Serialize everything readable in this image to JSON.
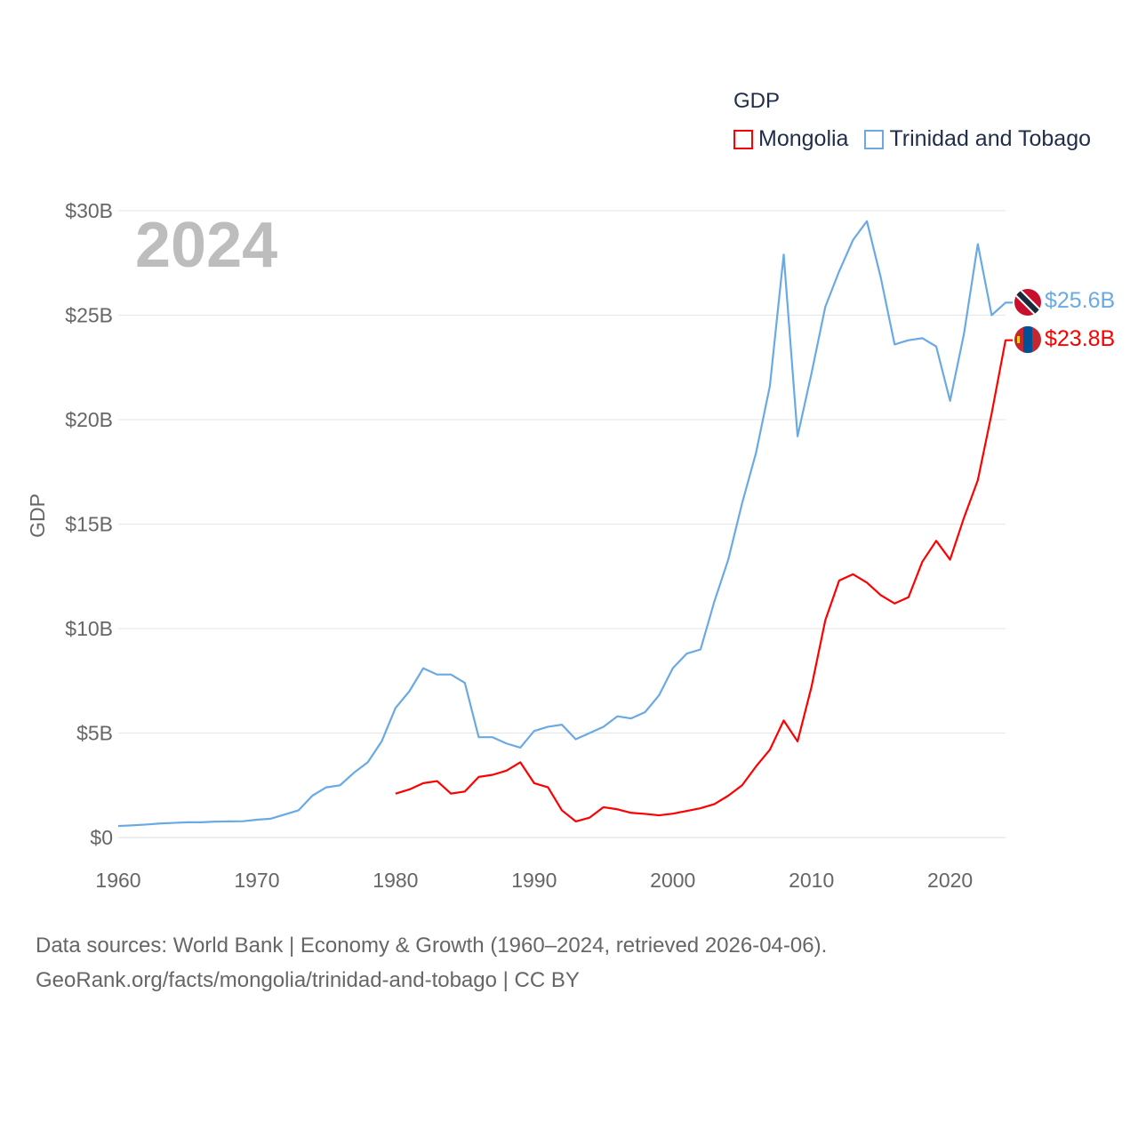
{
  "chart_data": {
    "type": "line",
    "title": "GDP",
    "year_label": "2024",
    "xlabel": "",
    "ylabel": "GDP",
    "xlim": [
      1960,
      2024
    ],
    "ylim": [
      0,
      30
    ],
    "x_ticks": [
      1960,
      1970,
      1980,
      1990,
      2000,
      2010,
      2020
    ],
    "x_tick_labels": [
      "1960",
      "1970",
      "1980",
      "1990",
      "2000",
      "2010",
      "2020"
    ],
    "y_ticks": [
      0,
      5,
      10,
      15,
      20,
      25,
      30
    ],
    "y_tick_labels": [
      "$0",
      "$5B",
      "$10B",
      "$15B",
      "$20B",
      "$25B",
      "$30B"
    ],
    "grid": true,
    "legend_position": "top-right",
    "series": [
      {
        "name": "Mongolia",
        "color": "#ff0000",
        "end_label": "$23.8B",
        "start_year": 1980,
        "values": [
          2.1,
          2.3,
          2.6,
          2.7,
          2.1,
          2.2,
          2.9,
          3.0,
          3.2,
          3.6,
          2.6,
          2.4,
          1.3,
          0.77,
          0.95,
          1.45,
          1.35,
          1.18,
          1.13,
          1.06,
          1.14,
          1.27,
          1.4,
          1.6,
          2.0,
          2.5,
          3.4,
          4.2,
          5.6,
          4.6,
          7.2,
          10.4,
          12.3,
          12.6,
          12.2,
          11.6,
          11.2,
          11.5,
          13.2,
          14.2,
          13.3,
          15.3,
          17.1,
          20.3,
          23.8
        ]
      },
      {
        "name": "Trinidad and Tobago",
        "color": "#6aaae4",
        "end_label": "$25.6B",
        "start_year": 1960,
        "values": [
          0.55,
          0.58,
          0.62,
          0.67,
          0.7,
          0.73,
          0.73,
          0.76,
          0.77,
          0.78,
          0.85,
          0.9,
          1.1,
          1.3,
          2.0,
          2.4,
          2.5,
          3.1,
          3.6,
          4.6,
          6.2,
          7.0,
          8.1,
          7.8,
          7.8,
          7.4,
          4.8,
          4.8,
          4.5,
          4.3,
          5.1,
          5.3,
          5.4,
          4.7,
          5.0,
          5.3,
          5.8,
          5.7,
          6.0,
          6.8,
          8.1,
          8.8,
          9.0,
          11.3,
          13.3,
          16.0,
          18.4,
          21.6,
          27.9,
          19.2,
          22.2,
          25.4,
          27.1,
          28.6,
          29.5,
          26.8,
          23.6,
          23.8,
          23.9,
          23.5,
          20.9,
          24.1,
          28.4,
          25.0,
          25.6
        ]
      }
    ]
  },
  "source": {
    "line1": "Data sources: World Bank | Economy & Growth (1960–2024, retrieved 2026-04-06).",
    "line2": "GeoRank.org/facts/mongolia/trinidad-and-tobago | CC BY"
  }
}
